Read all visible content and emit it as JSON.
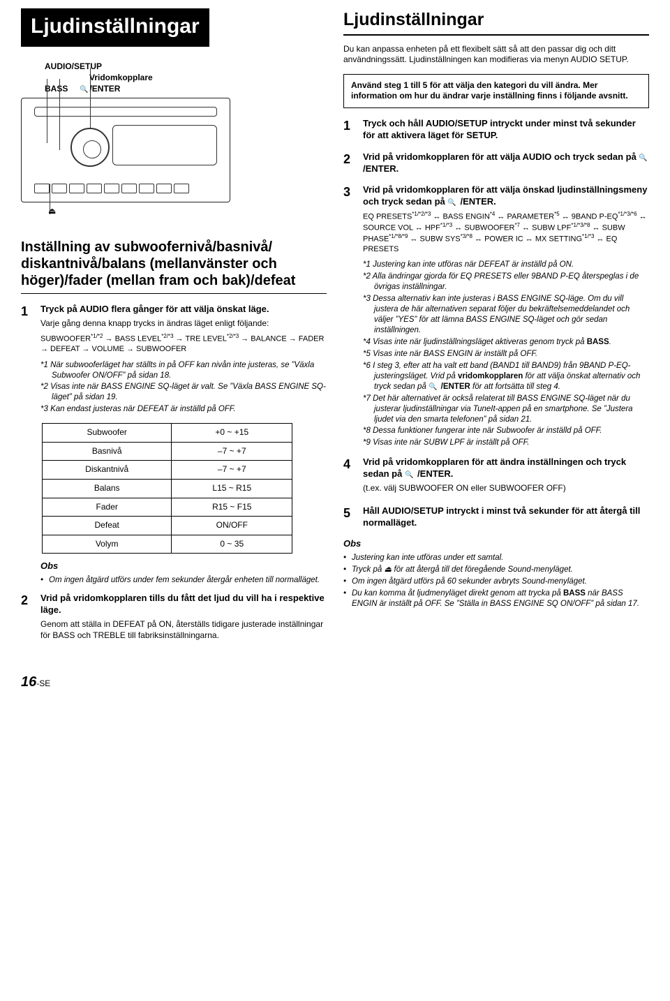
{
  "left": {
    "title": "Ljudinställningar",
    "labels": {
      "audio_setup": "AUDIO/SETUP",
      "vrid": "Vridomkopplare",
      "bass": "BASS",
      "enter": "/ENTER"
    },
    "subtitle": "Inställning av subwoofernivå/basnivå/ diskantnivå/balans (mellanvänster och höger)/fader (mellan fram och bak)/defeat",
    "step1": {
      "title": "Tryck på AUDIO flera gånger för att välja önskat läge.",
      "text": "Varje gång denna knapp trycks in ändras läget enligt följande:",
      "path": "SUBWOOFER*1/*2 → BASS LEVEL*2/*3 → TRE LEVEL*2/*3 → BALANCE → FADER → DEFEAT → VOLUME → SUBWOOFER",
      "n1": "*1 När subwooferläget har ställts in på OFF kan nivån inte justeras, se ”Växla Subwoofer ON/OFF” på sidan 18.",
      "n2": "*2 Visas inte när BASS ENGINE SQ-läget är valt. Se ”Växla BASS ENGINE SQ-läget” på sidan 19.",
      "n3": "*3 Kan endast justeras när DEFEAT är inställd på OFF."
    },
    "table": [
      [
        "Subwoofer",
        "+0 ~ +15"
      ],
      [
        "Basnivå",
        "–7 ~ +7"
      ],
      [
        "Diskantnivå",
        "–7 ~ +7"
      ],
      [
        "Balans",
        "L15 ~ R15"
      ],
      [
        "Fader",
        "R15 ~ F15"
      ],
      [
        "Defeat",
        "ON/OFF"
      ],
      [
        "Volym",
        "0 ~ 35"
      ]
    ],
    "obs_title": "Obs",
    "obs1": "Om ingen åtgärd utförs under fem sekunder återgår enheten till normalläget.",
    "step2": {
      "title": "Vrid på vridomkopplaren tills du fått det ljud du vill ha i respektive läge.",
      "text": "Genom att ställa in DEFEAT på ON, återställs tidigare justerade inställningar för BASS och TREBLE till fabriksinställningarna."
    }
  },
  "right": {
    "title": "Ljudinställningar",
    "intro": "Du kan anpassa enheten på ett flexibelt sätt så att den passar dig och ditt användningssätt. Ljudinställningen kan modifieras via menyn AUDIO SETUP.",
    "box": "Använd steg 1 till 5 för att välja den kategori du vill ändra. Mer information om hur du ändrar varje inställning finns i följande avsnitt.",
    "s1": "Tryck och håll AUDIO/SETUP intryckt under minst två sekunder för att aktivera läget för SETUP.",
    "s2a": "Vrid på ",
    "s2b": "vridomkopplaren",
    "s2c": " för att välja AUDIO och tryck sedan på ",
    "s2d": " /ENTER.",
    "s3a": "Vrid på ",
    "s3b": "vridomkopplaren",
    "s3c": " för att välja önskad ljudinställningsmeny och tryck sedan på ",
    "s3d": " /ENTER.",
    "s3path": "EQ PRESETS*1/*2/*3 ↔ BASS ENGIN*4 ↔ PARAMETER*5 ↔ 9BAND P-EQ*1/*3/*6 ↔ SOURCE VOL ↔ HPF*1/*3 ↔ SUBWOOFER*7 ↔ SUBW LPF*1/*3/*8 ↔ SUBW PHASE*1/*8/*9 ↔ SUBW SYS*3/*8 ↔ POWER IC ↔ MX SETTING*1/*3 ↔ EQ PRESETS",
    "fn1": "*1 Justering kan inte utföras när DEFEAT är inställd på ON.",
    "fn2": "*2 Alla ändringar gjorda för EQ PRESETS eller 9BAND P-EQ återspeglas i de övrigas inställningar.",
    "fn3": "*3 Dessa alternativ kan inte justeras i BASS ENGINE SQ-läge. Om du vill justera de här alternativen separat följer du bekräftelsemeddelandet och väljer ”YES” för att lämna BASS ENGINE SQ-läget och gör sedan inställningen.",
    "fn4": "*4 Visas inte när ljudinställningsläget aktiveras genom tryck på BASS.",
    "fn5": "*5 Visas inte när BASS ENGIN är inställt på OFF.",
    "fn6a": "*6 I steg 3, efter att ha valt ett band (BAND1 till BAND9) från 9BAND P-EQ-justeringsläget. Vrid på ",
    "fn6b": "vridomkopplaren",
    "fn6c": " för att välja önskat alternativ och tryck sedan på ",
    "fn6d": " /ENTER ",
    "fn6e": "för att fortsätta till steg 4.",
    "fn7": "*7 Det här alternativet är också relaterat till BASS ENGINE SQ-läget när du justerar ljudinställningar via TuneIt-appen på en smartphone. Se ”Justera ljudet via den smarta telefonen” på sidan 21.",
    "fn8": "*8 Dessa funktioner fungerar inte när Subwoofer är inställd på OFF.",
    "fn9": "*9 Visas inte när SUBW LPF är inställt på OFF.",
    "s4a": "Vrid på ",
    "s4b": "vridomkopplaren",
    "s4c": " för att ändra inställningen och tryck sedan på ",
    "s4d": " /ENTER.",
    "s4e": "(t.ex. välj SUBWOOFER ON eller SUBWOOFER OFF)",
    "s5": "Håll AUDIO/SETUP intryckt i minst två sekunder för att återgå till normalläget.",
    "obs_title": "Obs",
    "obs": [
      "Justering kan inte utföras under ett samtal.",
      "Tryck på ⏏ för att återgå till det föregående Sound-menyläget.",
      "Om ingen åtgärd utförs på 60 sekunder avbryts Sound-menyläget.",
      "Du kan komma åt ljudmenyläget direkt genom att trycka på BASS när BASS ENGIN är inställt på OFF. Se ”Ställa in BASS ENGINE SQ ON/OFF” på sidan 17."
    ]
  },
  "page": {
    "num": "16",
    "suffix": "-SE"
  }
}
